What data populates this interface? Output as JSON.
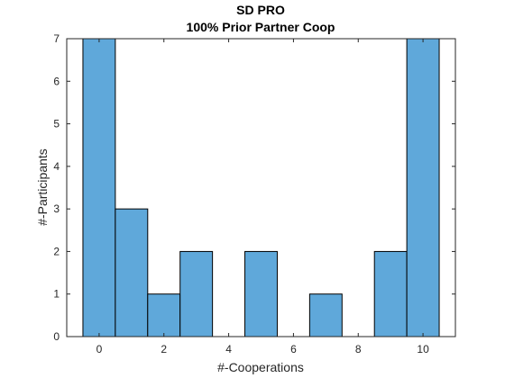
{
  "chart_data": {
    "type": "bar",
    "title": "SD PRO",
    "subtitle": "100% Prior Partner Coop",
    "xlabel": "#-Cooperations",
    "ylabel": "#-Participants",
    "bin_width": 1,
    "bins": [
      0,
      1,
      2,
      3,
      4,
      5,
      6,
      7,
      8,
      9,
      10
    ],
    "values": [
      7,
      3,
      1,
      2,
      0,
      2,
      0,
      1,
      0,
      2,
      7
    ],
    "xlim": [
      -1,
      11
    ],
    "ylim": [
      0,
      7
    ],
    "xticks": [
      0,
      2,
      4,
      6,
      8,
      10
    ],
    "yticks": [
      0,
      1,
      2,
      3,
      4,
      5,
      6,
      7
    ],
    "grid": false,
    "bar_color": "#5fa8da",
    "edge_color": "#000000"
  }
}
